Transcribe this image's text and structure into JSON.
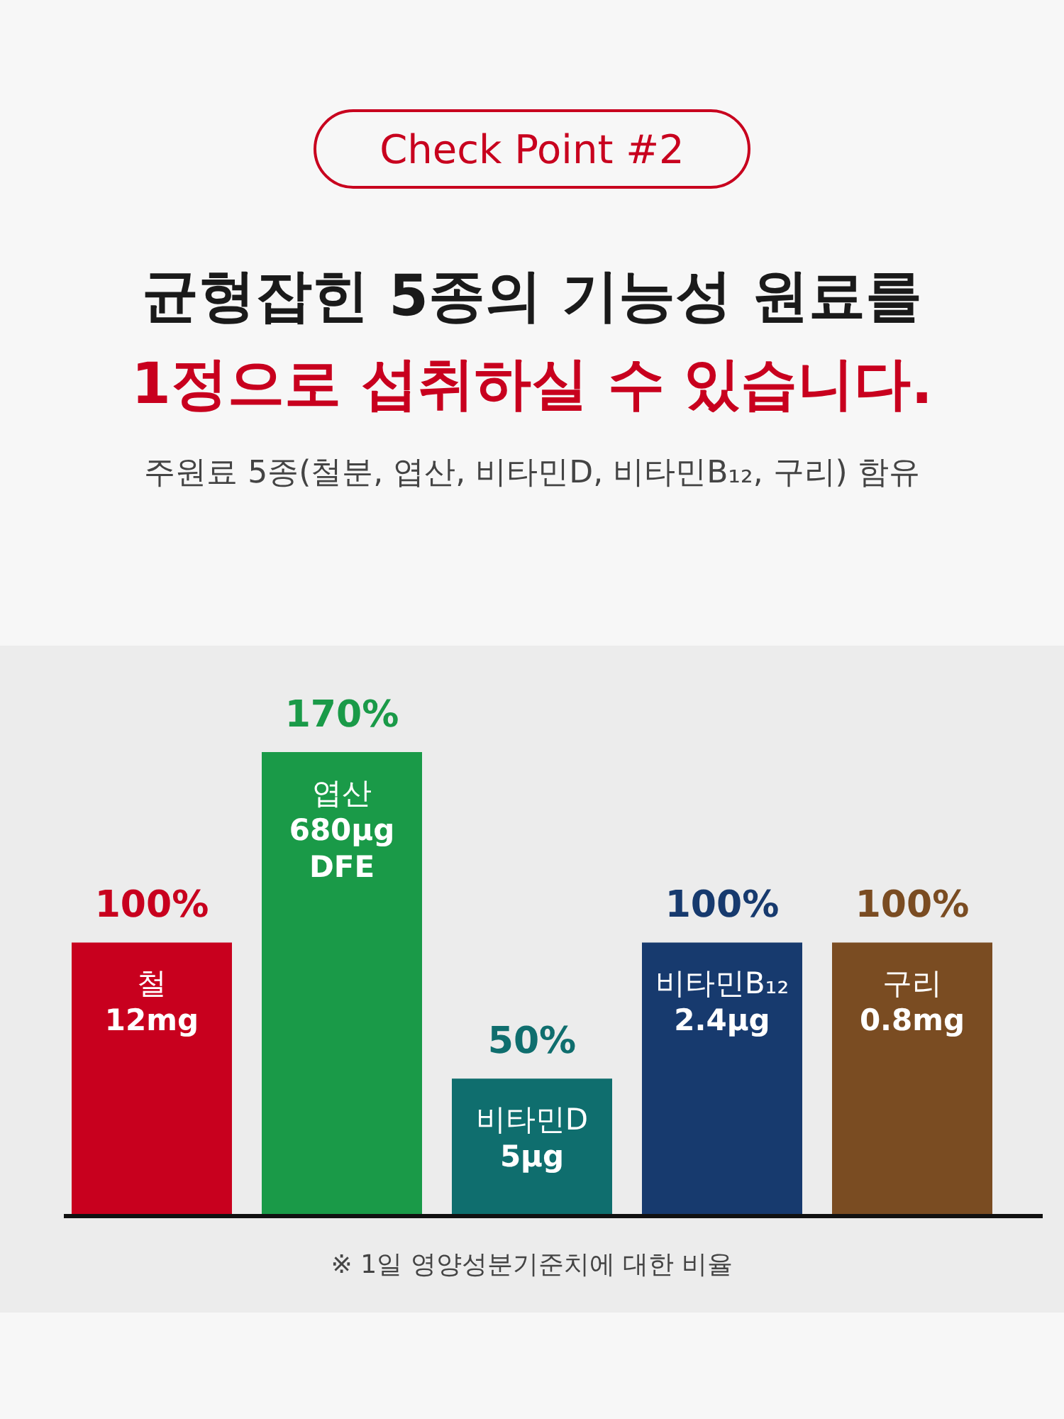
{
  "chart_data": {
    "type": "bar",
    "title": "균형잡힌 5종의 기능성 원료를\n1정으로 섭취하실 수 있습니다.",
    "subtitle": "주원료 5종(철분, 엽산, 비타민D, 비타민B₁₂, 구리) 함유",
    "annotations": [
      "Check Point #2",
      "※ 1일 영양성분기준치에 대한 비율"
    ],
    "categories": [
      "철\n12mg",
      "엽산\n680μg\nDFE",
      "비타민D\n5μg",
      "비타민B₁₂\n2.4μg",
      "구리\n0.8mg"
    ],
    "values": [
      100,
      170,
      50,
      100,
      100
    ],
    "value_labels": [
      "100%",
      "170%",
      "50%",
      "100%",
      "100%"
    ],
    "colors": [
      "#c8001e",
      "#1a9a48",
      "#0f6e6e",
      "#173a6e",
      "#7a4c22"
    ]
  }
}
